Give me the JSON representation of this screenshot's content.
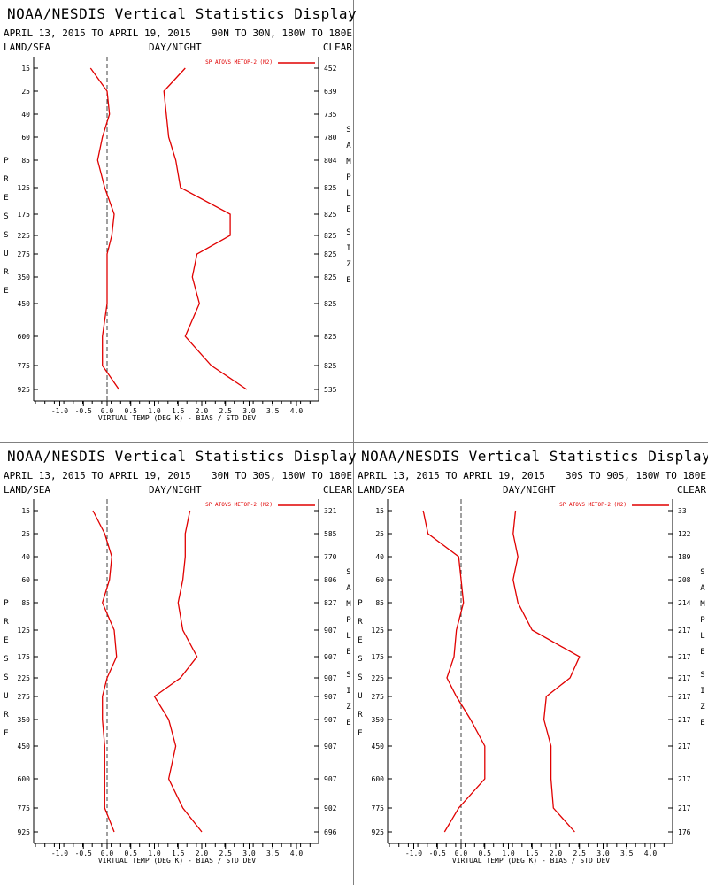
{
  "colors": {
    "line": "#e00000",
    "axis": "#000000",
    "zero_line": "#404040",
    "divider": "#808080"
  },
  "panels": [
    {
      "title": "NOAA/NESDIS Vertical Statistics Display",
      "date_range": "APRIL 13, 2015 TO APRIL 19, 2015",
      "region": "90N TO 30N, 180W TO 180E",
      "header_left": "LAND/SEA",
      "header_mid": "DAY/NIGHT",
      "header_right": "CLEAR",
      "left_vlabel": "PRESSURE",
      "right_vlabel": "SAMPLE SIZE",
      "x_axis_title": "VIRTUAL TEMP (DEG K) - BIAS / STD DEV",
      "sample_sizes": [
        "452",
        "639",
        "735",
        "780",
        "804",
        "825",
        "825",
        "825",
        "825",
        "825",
        "825",
        "825",
        "825",
        "535"
      ]
    },
    {
      "title": "NOAA/NESDIS Vertical Statistics Display",
      "date_range": "APRIL 13, 2015 TO APRIL 19, 2015",
      "region": "30N TO 30S, 180W TO 180E",
      "header_left": "LAND/SEA",
      "header_mid": "DAY/NIGHT",
      "header_right": "CLEAR",
      "left_vlabel": "PRESSURE",
      "right_vlabel": "SAMPLE SIZE",
      "x_axis_title": "VIRTUAL TEMP (DEG K) - BIAS / STD DEV",
      "sample_sizes": [
        "321",
        "585",
        "770",
        "806",
        "827",
        "907",
        "907",
        "907",
        "907",
        "907",
        "907",
        "907",
        "902",
        "696"
      ]
    },
    {
      "title": "NOAA/NESDIS Vertical Statistics Display",
      "date_range": "APRIL 13, 2015 TO APRIL 19, 2015",
      "region": "30S TO 90S, 180W TO 180E",
      "header_left": "LAND/SEA",
      "header_mid": "DAY/NIGHT",
      "header_right": "CLEAR",
      "left_vlabel": "PRESSURE",
      "right_vlabel": "SAMPLE SIZE",
      "x_axis_title": "VIRTUAL TEMP (DEG K) - BIAS / STD DEV",
      "sample_sizes": [
        "33",
        "122",
        "189",
        "208",
        "214",
        "217",
        "217",
        "217",
        "217",
        "217",
        "217",
        "217",
        "217",
        "176"
      ]
    }
  ],
  "chart_data": [
    {
      "type": "line",
      "title": "NOAA/NESDIS Vertical Statistics Display",
      "subtitle": "APRIL 13, 2015 TO APRIL 19, 2015   90N TO 30N, 180W TO 180E",
      "xlabel": "VIRTUAL TEMP (DEG K) - BIAS / STD DEV",
      "ylabel": "PRESSURE",
      "xlim": [
        -1.5,
        4.5
      ],
      "x_ticks": [
        "-1.0",
        "-0.5",
        "0.0",
        "0.5",
        "1.0",
        "1.5",
        "2.0",
        "2.5",
        "3.0",
        "3.5",
        "4.0"
      ],
      "pressure_levels": [
        15,
        25,
        40,
        60,
        85,
        125,
        175,
        225,
        275,
        350,
        450,
        600,
        775,
        925
      ],
      "legend": "SP ATOVS METOP-2 (M2)",
      "series": [
        {
          "name": "SP ATOVS METOP-2 (M2)",
          "bias": [
            -0.35,
            0.0,
            0.05,
            -0.1,
            -0.2,
            -0.05,
            0.15,
            0.1,
            0.0,
            0.0,
            0.0,
            -0.1,
            -0.1,
            0.25
          ],
          "stddev": [
            1.65,
            1.2,
            1.25,
            1.3,
            1.45,
            1.55,
            2.6,
            2.6,
            1.9,
            1.8,
            1.95,
            1.65,
            2.2,
            2.95
          ]
        }
      ]
    },
    {
      "type": "line",
      "title": "NOAA/NESDIS Vertical Statistics Display",
      "subtitle": "APRIL 13, 2015 TO APRIL 19, 2015   30N TO 30S, 180W TO 180E",
      "xlabel": "VIRTUAL TEMP (DEG K) - BIAS / STD DEV",
      "ylabel": "PRESSURE",
      "xlim": [
        -1.5,
        4.5
      ],
      "x_ticks": [
        "-1.0",
        "-0.5",
        "0.0",
        "0.5",
        "1.0",
        "1.5",
        "2.0",
        "2.5",
        "3.0",
        "3.5",
        "4.0"
      ],
      "pressure_levels": [
        15,
        25,
        40,
        60,
        85,
        125,
        175,
        225,
        275,
        350,
        450,
        600,
        775,
        925
      ],
      "legend": "SP ATOVS METOP-2 (M2)",
      "series": [
        {
          "name": "SP ATOVS METOP-2 (M2)",
          "bias": [
            -0.3,
            -0.05,
            0.1,
            0.05,
            -0.1,
            0.15,
            0.2,
            0.0,
            -0.1,
            -0.1,
            -0.05,
            -0.05,
            -0.05,
            0.15
          ],
          "stddev": [
            1.75,
            1.65,
            1.65,
            1.6,
            1.5,
            1.6,
            1.9,
            1.55,
            1.0,
            1.3,
            1.45,
            1.3,
            1.6,
            2.0
          ]
        }
      ]
    },
    {
      "type": "line",
      "title": "NOAA/NESDIS Vertical Statistics Display",
      "subtitle": "APRIL 13, 2015 TO APRIL 19, 2015   30S TO 90S, 180W TO 180E",
      "xlabel": "VIRTUAL TEMP (DEG K) - BIAS / STD DEV",
      "ylabel": "PRESSURE",
      "xlim": [
        -1.5,
        4.5
      ],
      "x_ticks": [
        "-1.0",
        "-0.5",
        "0.0",
        "0.5",
        "1.0",
        "1.5",
        "2.0",
        "2.5",
        "3.0",
        "3.5",
        "4.0"
      ],
      "pressure_levels": [
        15,
        25,
        40,
        60,
        85,
        125,
        175,
        225,
        275,
        350,
        450,
        600,
        775,
        925
      ],
      "legend": "SP ATOVS METOP-2 (M2)",
      "series": [
        {
          "name": "SP ATOVS METOP-2 (M2)",
          "bias": [
            -0.8,
            -0.7,
            -0.05,
            0.0,
            0.05,
            -0.1,
            -0.15,
            -0.3,
            -0.1,
            0.2,
            0.5,
            0.5,
            -0.05,
            -0.35
          ],
          "stddev": [
            1.15,
            1.1,
            1.2,
            1.1,
            1.2,
            1.5,
            2.5,
            2.3,
            1.8,
            1.75,
            1.9,
            1.9,
            1.95,
            2.4
          ]
        }
      ]
    }
  ]
}
